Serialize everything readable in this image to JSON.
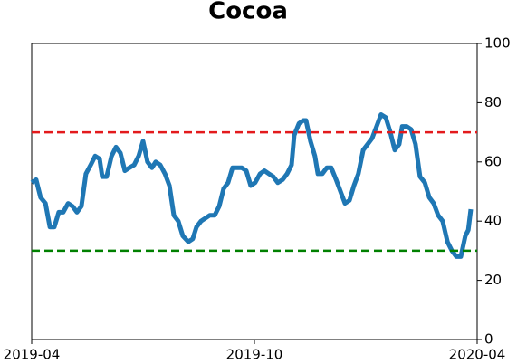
{
  "chart_data": {
    "type": "line",
    "title": "Cocoa",
    "x": [
      0,
      0.12,
      0.24,
      0.37,
      0.49,
      0.61,
      0.73,
      0.85,
      0.98,
      1.1,
      1.22,
      1.34,
      1.46,
      1.59,
      1.71,
      1.83,
      1.9,
      2.02,
      2.15,
      2.27,
      2.39,
      2.51,
      2.63,
      2.76,
      2.88,
      3.0,
      3.12,
      3.24,
      3.34,
      3.46,
      3.59,
      3.71,
      3.83,
      3.95,
      4.07,
      4.22,
      4.34,
      4.44,
      4.56,
      4.68,
      4.8,
      4.93,
      5.05,
      5.17,
      5.29,
      5.41,
      5.54,
      5.66,
      5.78,
      5.9,
      6.02,
      6.15,
      6.27,
      6.39,
      6.51,
      6.63,
      6.76,
      6.88,
      7.0,
      7.07,
      7.2,
      7.32,
      7.39,
      7.51,
      7.63,
      7.71,
      7.83,
      7.95,
      8.07,
      8.2,
      8.32,
      8.44,
      8.56,
      8.68,
      8.8,
      8.93,
      9.05,
      9.17,
      9.29,
      9.41,
      9.54,
      9.66,
      9.78,
      9.9,
      9.98,
      10.1,
      10.22,
      10.34,
      10.46,
      10.59,
      10.71,
      10.83,
      10.95,
      11.07,
      11.2,
      11.32,
      11.44,
      11.56,
      11.68,
      11.76,
      11.83
    ],
    "series": [
      {
        "color": "#1f77b4",
        "values": [
          53,
          54,
          48,
          46,
          38,
          38,
          43,
          43,
          46,
          45,
          43,
          45,
          56,
          59,
          62,
          61,
          55,
          55,
          62,
          65,
          63,
          57,
          58,
          59,
          62,
          67,
          60,
          58,
          60,
          59,
          56,
          52,
          42,
          40,
          35,
          33,
          34,
          38,
          40,
          41,
          42,
          42,
          45,
          51,
          53,
          58,
          58,
          58,
          57,
          52,
          53,
          56,
          57,
          56,
          55,
          53,
          54,
          56,
          59,
          69,
          73,
          74,
          74,
          67,
          62,
          56,
          56,
          58,
          58,
          54,
          50,
          46,
          47,
          52,
          56,
          64,
          66,
          68,
          72,
          76,
          75,
          70,
          64,
          66,
          72,
          72,
          71,
          66,
          55,
          53,
          48,
          46,
          42,
          40,
          33,
          30,
          28,
          28,
          35,
          37,
          44
        ]
      }
    ],
    "xlim": [
      0,
      12
    ],
    "xticks": [
      {
        "value": 0,
        "label": "2019-04"
      },
      {
        "value": 6,
        "label": "2019-10"
      },
      {
        "value": 12,
        "label": "2020-04"
      }
    ],
    "ylim": [
      0,
      100
    ],
    "yticks": [
      0,
      20,
      40,
      60,
      80,
      100
    ],
    "hlines": [
      {
        "value": 70,
        "color": "#e31a1c"
      },
      {
        "value": 30,
        "color": "#008000"
      }
    ]
  }
}
